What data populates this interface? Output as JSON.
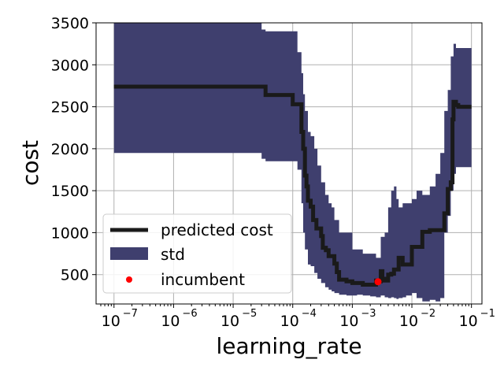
{
  "chart_data": {
    "type": "line",
    "xlabel": "learning_rate",
    "ylabel": "cost",
    "xscale": "log",
    "xlim": [
      5e-08,
      0.15
    ],
    "ylim": [
      150,
      3500
    ],
    "grid": true,
    "legend_placement": "lower-left",
    "x_tick_values": [
      1e-07,
      1e-06,
      1e-05,
      0.0001,
      0.001,
      0.01,
      0.1
    ],
    "x_tick_labels": [
      "10",
      "10",
      "10",
      "10",
      "10",
      "10",
      "10"
    ],
    "x_tick_exponents": [
      "−7",
      "−6",
      "−5",
      "−4",
      "−3",
      "−2",
      "−1"
    ],
    "y_ticks": [
      500,
      1000,
      1500,
      2000,
      2500,
      3000,
      3500
    ],
    "y_tick_labels": [
      "500",
      "1000",
      "1500",
      "2000",
      "2500",
      "3000",
      "3500"
    ],
    "series": [
      {
        "name": "predicted cost",
        "color": "#1a1a1a",
        "x": [
          1e-07,
          3e-07,
          1e-06,
          3e-06,
          1e-05,
          3e-05,
          3.5e-05,
          6e-05,
          8e-05,
          0.0001,
          0.00013,
          0.00014,
          0.00015,
          0.00016,
          0.00017,
          0.00018,
          0.0002,
          0.00022,
          0.00025,
          0.0003,
          0.00032,
          0.00036,
          0.0004,
          0.00045,
          0.0005,
          0.00055,
          0.0006,
          0.0008,
          0.001,
          0.0012,
          0.0015,
          0.002,
          0.0025,
          0.0028,
          0.003,
          0.0032,
          0.0035,
          0.004,
          0.0045,
          0.005,
          0.006,
          0.007,
          0.008,
          0.01,
          0.012,
          0.015,
          0.02,
          0.025,
          0.03,
          0.035,
          0.04,
          0.045,
          0.048,
          0.05,
          0.055,
          0.06,
          0.1
        ],
        "y": [
          2740,
          2740,
          2740,
          2740,
          2740,
          2740,
          2640,
          2640,
          2640,
          2530,
          2530,
          2200,
          2000,
          1680,
          1550,
          1380,
          1310,
          1150,
          1050,
          960,
          820,
          790,
          720,
          720,
          630,
          530,
          440,
          420,
          400,
          400,
          380,
          380,
          430,
          420,
          540,
          450,
          430,
          500,
          510,
          560,
          700,
          620,
          620,
          830,
          830,
          1010,
          1030,
          1030,
          1030,
          1230,
          1520,
          1600,
          2350,
          2560,
          2520,
          2500,
          2500
        ]
      }
    ],
    "std_band": {
      "name": "std",
      "color": "#3f3f6e",
      "x": [
        1e-07,
        3e-07,
        1e-06,
        3e-06,
        1e-05,
        2.5e-05,
        3e-05,
        3.5e-05,
        6e-05,
        8e-05,
        0.0001,
        0.00012,
        0.00014,
        0.00015,
        0.00016,
        0.00018,
        0.0002,
        0.00023,
        0.00026,
        0.0003,
        0.00035,
        0.0004,
        0.00045,
        0.0005,
        0.0006,
        0.0008,
        0.001,
        0.0012,
        0.0015,
        0.002,
        0.0025,
        0.003,
        0.0035,
        0.004,
        0.0045,
        0.005,
        0.0055,
        0.006,
        0.007,
        0.008,
        0.01,
        0.012,
        0.015,
        0.02,
        0.025,
        0.03,
        0.035,
        0.04,
        0.045,
        0.05,
        0.055,
        0.06,
        0.1
      ],
      "upper": [
        3500,
        3500,
        3500,
        3500,
        3500,
        3500,
        3420,
        3400,
        3400,
        3400,
        3400,
        3150,
        2900,
        2650,
        2450,
        2200,
        2150,
        2000,
        1800,
        1600,
        1450,
        1350,
        1300,
        1150,
        1000,
        1000,
        800,
        800,
        750,
        750,
        700,
        950,
        1000,
        1300,
        1500,
        1550,
        1400,
        1300,
        1350,
        1350,
        1400,
        1500,
        1450,
        1550,
        1700,
        1950,
        2450,
        2700,
        3100,
        3250,
        3200,
        3200,
        3200
      ],
      "lower": [
        1950,
        1950,
        1950,
        1950,
        1950,
        1950,
        1880,
        1850,
        1850,
        1850,
        1850,
        1750,
        1350,
        1000,
        800,
        620,
        600,
        520,
        450,
        400,
        350,
        320,
        300,
        280,
        260,
        250,
        250,
        260,
        250,
        240,
        230,
        250,
        230,
        220,
        230,
        220,
        210,
        220,
        230,
        250,
        280,
        220,
        180,
        200,
        180,
        220,
        1000,
        1200,
        1500,
        1700,
        1780,
        1780,
        1780
      ]
    },
    "incumbent": {
      "name": "incumbent",
      "x": 0.0027,
      "y": 415,
      "color": "#ff0000"
    },
    "legend": [
      "predicted cost",
      "std",
      "incumbent"
    ]
  }
}
